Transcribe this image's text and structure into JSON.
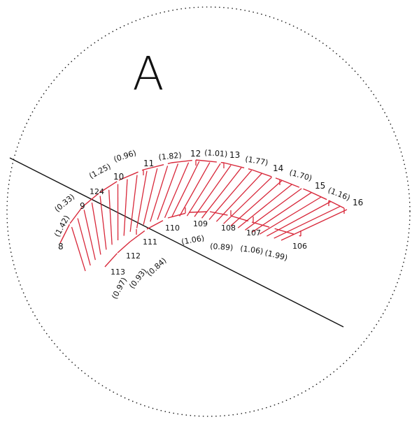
{
  "title": "A",
  "colors": {
    "ink": "#111111",
    "hatch": "#d8283a",
    "dots": "#222222"
  },
  "outer_points": [
    {
      "id": "8",
      "value": "(1.42)"
    },
    {
      "id": "9",
      "value": "(0.33)"
    },
    {
      "id": "124",
      "value": ""
    },
    {
      "id": "10",
      "value": "(1.25)"
    },
    {
      "id": "11",
      "value": "(0.96)"
    },
    {
      "id": "12",
      "value": "(1.82)"
    },
    {
      "id": "13",
      "value": "(1.01)"
    },
    {
      "id": "14",
      "value": "(1.77)"
    },
    {
      "id": "15",
      "value": "(1.70)"
    },
    {
      "id": "16",
      "value": "(1.16)"
    }
  ],
  "inner_points": [
    {
      "id": "113",
      "value": "(0.97)"
    },
    {
      "id": "112",
      "value": "(0.93)"
    },
    {
      "id": "111",
      "value": "(0.84)"
    },
    {
      "id": "110",
      "value": "(1.06)"
    },
    {
      "id": "109",
      "value": ""
    },
    {
      "id": "108",
      "value": "(0.89)"
    },
    {
      "id": "107",
      "value": "(1.06)"
    },
    {
      "id": "106",
      "value": "(1.99)"
    }
  ]
}
